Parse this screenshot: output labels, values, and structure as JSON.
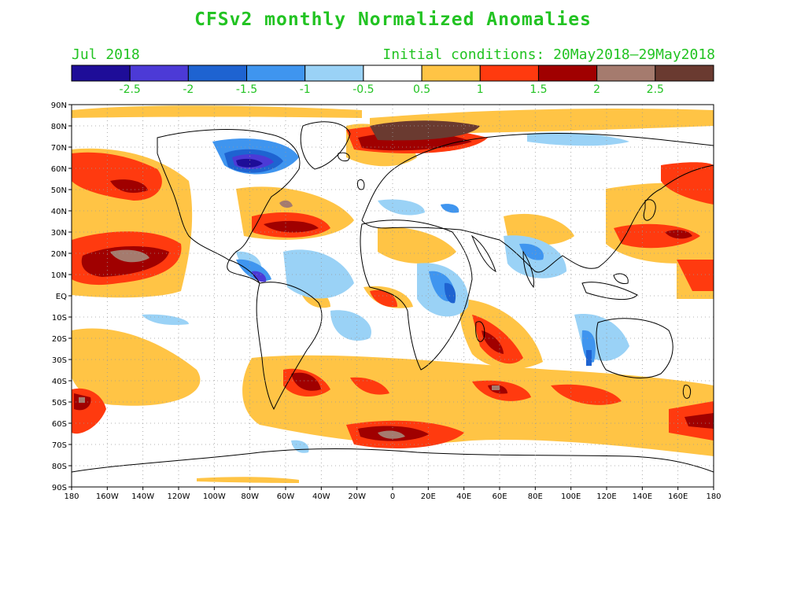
{
  "title": "CFSv2 monthly Normalized Anomalies",
  "month_label": "Jul 2018",
  "initial_conditions": "Initial conditions: 20May2018–29May2018",
  "colorbar": {
    "colors": [
      "#1e0d98",
      "#4c3ad6",
      "#1e63d1",
      "#3f95ef",
      "#9ad2f6",
      "#ffffff",
      "#ffc445",
      "#ff3a0f",
      "#a00000",
      "#a57b6e",
      "#6a3a30"
    ],
    "labels": [
      "-2.5",
      "-2",
      "-1.5",
      "-1",
      "-0.5",
      "0.5",
      "1",
      "1.5",
      "2",
      "2.5"
    ]
  },
  "map": {
    "lat_labels": [
      "90N",
      "80N",
      "70N",
      "60N",
      "50N",
      "40N",
      "30N",
      "20N",
      "10N",
      "EQ",
      "10S",
      "20S",
      "30S",
      "40S",
      "50S",
      "60S",
      "70S",
      "80S",
      "90S"
    ],
    "lon_labels": [
      "180",
      "160W",
      "140W",
      "120W",
      "100W",
      "80W",
      "60W",
      "40W",
      "20W",
      "0",
      "20E",
      "40E",
      "60E",
      "80E",
      "100E",
      "120E",
      "140E",
      "160E",
      "180"
    ],
    "anomaly_levels": {
      "weak_pos": "#ffc445",
      "pos": "#ff3a0f",
      "strong_pos": "#a00000",
      "extreme_pos": "#a57b6e",
      "max_pos": "#6a3a30",
      "weak_neg": "#9ad2f6",
      "neg": "#3f95ef",
      "strong_neg": "#1e63d1",
      "extreme_neg": "#4c3ad6",
      "max_neg": "#1e0d98"
    }
  }
}
